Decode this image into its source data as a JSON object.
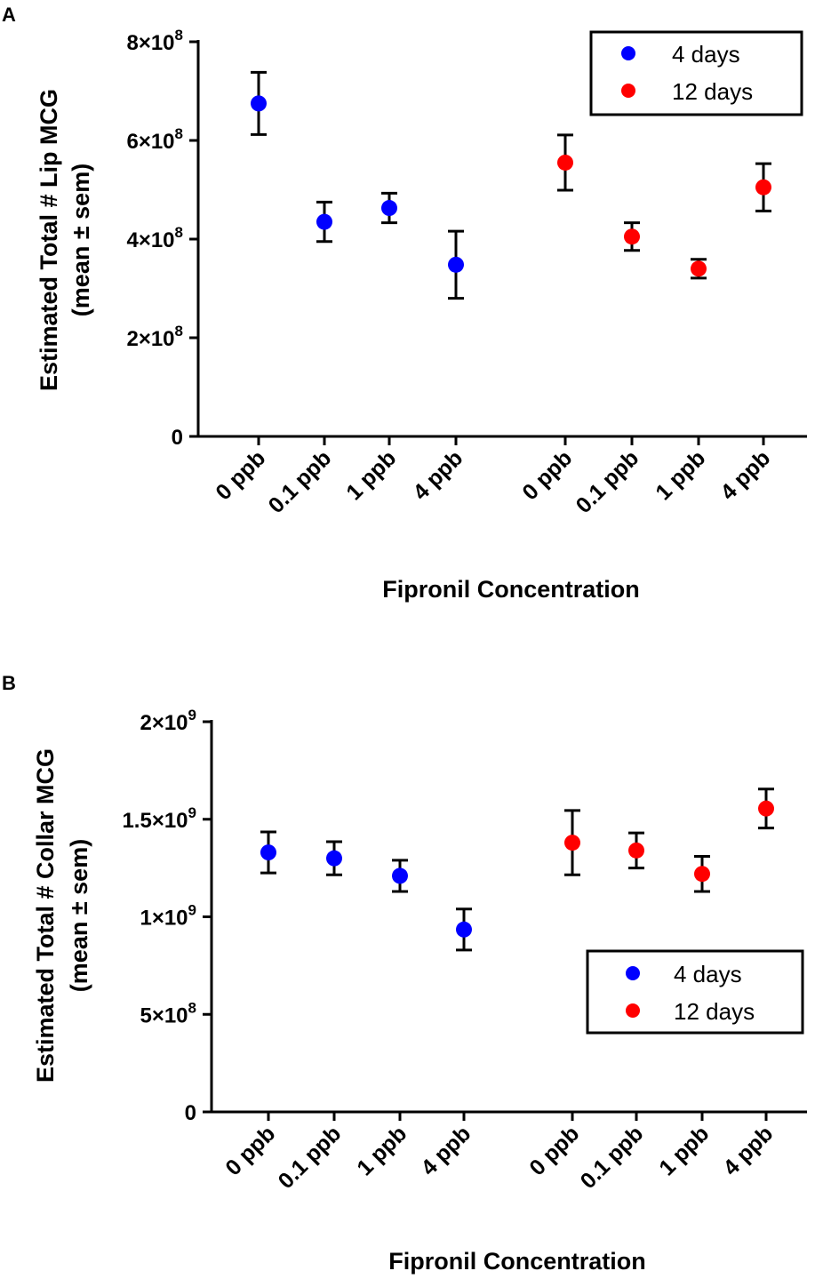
{
  "chart_data": [
    {
      "type": "scatter",
      "panel_label": "A",
      "title": "",
      "xlabel": "Fipronil Concentration",
      "ylabel": [
        "Estimated Total # Lip MCG",
        "(mean ± sem)"
      ],
      "ylim": [
        0,
        800000000
      ],
      "yticks": [
        {
          "value": 0,
          "label": "0"
        },
        {
          "value": 200000000,
          "label": "2×10",
          "exp": "8"
        },
        {
          "value": 400000000,
          "label": "4×10",
          "exp": "8"
        },
        {
          "value": 600000000,
          "label": "6×10",
          "exp": "8"
        },
        {
          "value": 800000000,
          "label": "8×10",
          "exp": "8"
        }
      ],
      "categories": [
        "0 ppb",
        "0.1 ppb",
        "1 ppb",
        "4 ppb",
        "0 ppb",
        "0.1 ppb",
        "1 ppb",
        "4 ppb"
      ],
      "legend_position": "top-right",
      "series": [
        {
          "name": "4 days",
          "color": "#0000ff",
          "values": [
            675000000,
            435000000,
            463000000,
            348000000
          ],
          "errors": [
            63000000,
            40000000,
            30000000,
            68000000
          ]
        },
        {
          "name": "12 days",
          "color": "#ff0000",
          "values": [
            555000000,
            405000000,
            340000000,
            505000000
          ],
          "errors": [
            56000000,
            28000000,
            19000000,
            48000000
          ]
        }
      ]
    },
    {
      "type": "scatter",
      "panel_label": "B",
      "title": "",
      "xlabel": "Fipronil Concentration",
      "ylabel": [
        "Estimated Total # Collar MCG",
        "(mean ± sem)"
      ],
      "ylim": [
        0,
        2000000000
      ],
      "yticks": [
        {
          "value": 0,
          "label": "0"
        },
        {
          "value": 500000000,
          "label": "5×10",
          "exp": "8"
        },
        {
          "value": 1000000000,
          "label": "1×10",
          "exp": "9"
        },
        {
          "value": 1500000000,
          "label": "1.5×10",
          "exp": "9"
        },
        {
          "value": 2000000000,
          "label": "2×10",
          "exp": "9"
        }
      ],
      "categories": [
        "0 ppb",
        "0.1 ppb",
        "1 ppb",
        "4 ppb",
        "0 ppb",
        "0.1 ppb",
        "1 ppb",
        "4 ppb"
      ],
      "legend_position": "center-right",
      "series": [
        {
          "name": "4 days",
          "color": "#0000ff",
          "values": [
            1330000000,
            1300000000,
            1210000000,
            935000000
          ],
          "errors": [
            105000000,
            85000000,
            80000000,
            105000000
          ]
        },
        {
          "name": "12 days",
          "color": "#ff0000",
          "values": [
            1380000000,
            1340000000,
            1220000000,
            1555000000
          ],
          "errors": [
            165000000,
            90000000,
            90000000,
            100000000
          ]
        }
      ]
    }
  ]
}
